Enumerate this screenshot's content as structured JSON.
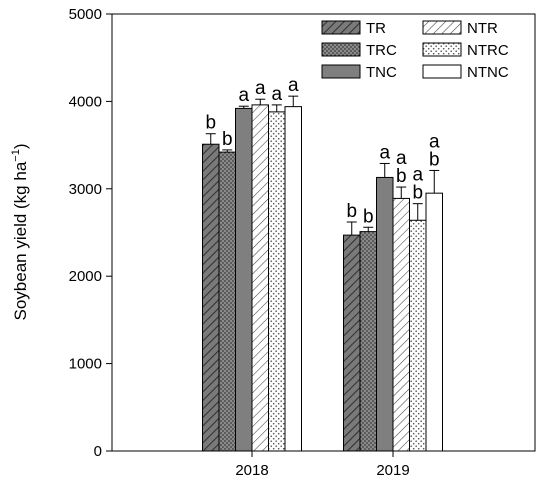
{
  "chart_data": {
    "type": "bar",
    "title": "",
    "xlabel": "",
    "ylabel": "Soybean yield (kg ha",
    "ylabel_sup": "−1",
    "ylabel_close": ")",
    "ylim": [
      0,
      5000
    ],
    "yticks": [
      "0",
      "1000",
      "2000",
      "3000",
      "4000",
      "5000"
    ],
    "categories": [
      "2018",
      "2019"
    ],
    "legend_position": "top-right",
    "grid": false,
    "series": [
      {
        "name": "TR",
        "pattern": "dark-hatch",
        "values": [
          3510,
          2470
        ],
        "errors": [
          120,
          150
        ],
        "letters": [
          [
            "b"
          ],
          [
            "b"
          ]
        ]
      },
      {
        "name": "TRC",
        "pattern": "dark-dots",
        "values": [
          3420,
          2510
        ],
        "errors": [
          25,
          50
        ],
        "letters": [
          [
            "b"
          ],
          [
            "b"
          ]
        ]
      },
      {
        "name": "TNC",
        "pattern": "solid-gray",
        "values": [
          3920,
          3130
        ],
        "errors": [
          25,
          160
        ],
        "letters": [
          [
            "a"
          ],
          [
            "a"
          ]
        ]
      },
      {
        "name": "NTR",
        "pattern": "light-hatch",
        "values": [
          3960,
          2890
        ],
        "errors": [
          65,
          130
        ],
        "letters": [
          [
            "a"
          ],
          [
            "a",
            "b"
          ]
        ]
      },
      {
        "name": "NTRC",
        "pattern": "light-dots",
        "values": [
          3880,
          2640
        ],
        "errors": [
          80,
          190
        ],
        "letters": [
          [
            "a"
          ],
          [
            "a",
            "b"
          ]
        ]
      },
      {
        "name": "NTNC",
        "pattern": "white",
        "values": [
          3940,
          2950
        ],
        "errors": [
          120,
          260
        ],
        "letters": [
          [
            "a"
          ],
          [
            "a",
            "b"
          ]
        ]
      }
    ]
  }
}
